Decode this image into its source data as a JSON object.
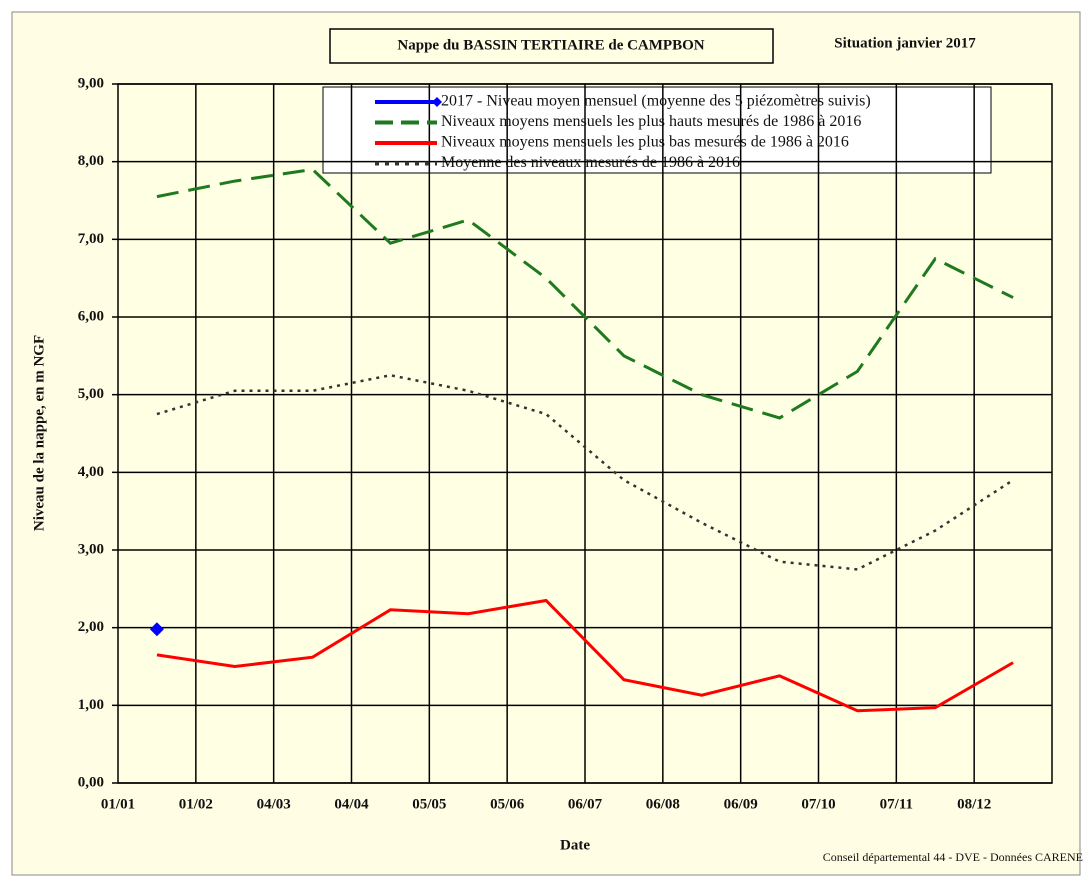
{
  "chart_data": {
    "type": "line",
    "title": "Nappe du BASSIN TERTIAIRE de CAMPBON",
    "subtitle": "Situation janvier 2017",
    "x_label": "Date",
    "y_label": "Niveau de la nappe, en m NGF",
    "source": "Conseil départemental 44 - DVE -    Données CARENE",
    "categories": [
      "01/01",
      "01/02",
      "04/03",
      "04/04",
      "05/05",
      "05/06",
      "06/07",
      "06/08",
      "06/09",
      "07/10",
      "07/11",
      "08/12"
    ],
    "ylim": [
      0,
      9
    ],
    "yticks": [
      {
        "value": 0,
        "label": "0,00"
      },
      {
        "value": 1,
        "label": "1,00"
      },
      {
        "value": 2,
        "label": "2,00"
      },
      {
        "value": 3,
        "label": "3,00"
      },
      {
        "value": 4,
        "label": "4,00"
      },
      {
        "value": 5,
        "label": "5,00"
      },
      {
        "value": 6,
        "label": "6,00"
      },
      {
        "value": 7,
        "label": "7,00"
      },
      {
        "value": 8,
        "label": "8,00"
      },
      {
        "value": 9,
        "label": "9,00"
      }
    ],
    "grid": true,
    "legend": "top",
    "series": [
      {
        "name": "2017 - Niveau moyen mensuel (moyenne des 5 piézomètres suivis)",
        "color": "#0000ff",
        "style": "solid",
        "marker": true,
        "values": [
          1.98,
          null,
          null,
          null,
          null,
          null,
          null,
          null,
          null,
          null,
          null,
          null
        ]
      },
      {
        "name": "Niveaux moyens mensuels les plus hauts mesurés de 1986 à 2016",
        "color": "#1f7a1f",
        "style": "dashed",
        "values": [
          7.55,
          7.75,
          7.9,
          6.95,
          7.25,
          6.5,
          5.5,
          5.0,
          4.7,
          5.3,
          6.75,
          6.25
        ]
      },
      {
        "name": "Niveaux moyens mensuels les plus bas mesurés de 1986 à 2016",
        "color": "#ff0000",
        "style": "solid",
        "values": [
          1.65,
          1.5,
          1.62,
          2.23,
          2.18,
          2.35,
          1.33,
          1.13,
          1.38,
          0.93,
          0.97,
          1.55
        ]
      },
      {
        "name": "Moyenne des niveaux mesurés de 1986 à 2016",
        "color": "#333333",
        "style": "dotted",
        "values": [
          4.75,
          5.05,
          5.05,
          5.25,
          5.05,
          4.75,
          3.9,
          3.35,
          2.85,
          2.75,
          3.25,
          3.9
        ]
      }
    ]
  }
}
